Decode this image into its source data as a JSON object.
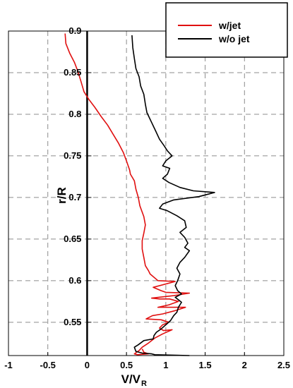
{
  "chart_data": {
    "type": "line",
    "title": "",
    "xlabel": "V/V",
    "xlabel_sub": "R",
    "ylabel": "r/R",
    "xlim": [
      -1,
      2.5
    ],
    "ylim": [
      0.51,
      0.9
    ],
    "xticks": [
      "-1",
      "-0.5",
      "0",
      "0.5",
      "1",
      "1.5",
      "2",
      "2.5"
    ],
    "yticks": [
      "0.55",
      "0.6",
      "0.65",
      "0.7",
      "0.75",
      "0.8",
      "0.85",
      "0.9"
    ],
    "grid": true,
    "legend_position": "top-right",
    "series": [
      {
        "name": "w/jet",
        "color": "#e01010",
        "points": [
          [
            -0.28,
            0.897
          ],
          [
            -0.27,
            0.885
          ],
          [
            -0.22,
            0.873
          ],
          [
            -0.16,
            0.862
          ],
          [
            -0.12,
            0.852
          ],
          [
            -0.08,
            0.84
          ],
          [
            -0.04,
            0.827
          ],
          [
            0.02,
            0.818
          ],
          [
            0.1,
            0.808
          ],
          [
            0.18,
            0.797
          ],
          [
            0.26,
            0.787
          ],
          [
            0.33,
            0.776
          ],
          [
            0.4,
            0.765
          ],
          [
            0.46,
            0.754
          ],
          [
            0.5,
            0.744
          ],
          [
            0.54,
            0.733
          ],
          [
            0.55,
            0.728
          ],
          [
            0.6,
            0.72
          ],
          [
            0.62,
            0.71
          ],
          [
            0.65,
            0.7
          ],
          [
            0.67,
            0.69
          ],
          [
            0.72,
            0.677
          ],
          [
            0.74,
            0.667
          ],
          [
            0.72,
            0.657
          ],
          [
            0.7,
            0.648
          ],
          [
            0.7,
            0.638
          ],
          [
            0.72,
            0.628
          ],
          [
            0.74,
            0.618
          ],
          [
            0.78,
            0.612
          ],
          [
            0.8,
            0.608
          ],
          [
            0.9,
            0.6
          ],
          [
            1.12,
            0.599
          ],
          [
            0.84,
            0.592
          ],
          [
            0.94,
            0.588
          ],
          [
            1.0,
            0.586
          ],
          [
            1.3,
            0.585
          ],
          [
            1.1,
            0.582
          ],
          [
            0.82,
            0.579
          ],
          [
            0.92,
            0.578
          ],
          [
            1.05,
            0.578
          ],
          [
            1.16,
            0.575
          ],
          [
            1.04,
            0.571
          ],
          [
            0.9,
            0.568
          ],
          [
            1.02,
            0.568
          ],
          [
            1.25,
            0.568
          ],
          [
            1.12,
            0.564
          ],
          [
            0.96,
            0.56
          ],
          [
            0.83,
            0.558
          ],
          [
            0.75,
            0.554
          ],
          [
            0.94,
            0.553
          ],
          [
            1.04,
            0.55
          ],
          [
            0.96,
            0.547
          ],
          [
            0.92,
            0.543
          ],
          [
            0.97,
            0.54
          ],
          [
            1.08,
            0.541
          ],
          [
            0.96,
            0.536
          ],
          [
            0.86,
            0.531
          ],
          [
            0.78,
            0.525
          ],
          [
            0.7,
            0.52
          ],
          [
            0.66,
            0.516
          ],
          [
            0.6,
            0.512
          ],
          [
            0.64,
            0.511
          ],
          [
            0.78,
            0.512
          ],
          [
            0.72,
            0.514
          ],
          [
            0.7,
            0.518
          ]
        ]
      },
      {
        "name": "w/o jet",
        "color": "#000000",
        "points": [
          [
            0.57,
            0.895
          ],
          [
            0.58,
            0.88
          ],
          [
            0.6,
            0.867
          ],
          [
            0.62,
            0.855
          ],
          [
            0.66,
            0.845
          ],
          [
            0.68,
            0.834
          ],
          [
            0.72,
            0.824
          ],
          [
            0.74,
            0.812
          ],
          [
            0.76,
            0.802
          ],
          [
            0.82,
            0.79
          ],
          [
            0.87,
            0.78
          ],
          [
            0.92,
            0.77
          ],
          [
            0.98,
            0.762
          ],
          [
            1.02,
            0.756
          ],
          [
            1.06,
            0.752
          ],
          [
            1.08,
            0.75
          ],
          [
            1.0,
            0.744
          ],
          [
            0.96,
            0.738
          ],
          [
            1.05,
            0.735
          ],
          [
            1.02,
            0.728
          ],
          [
            0.96,
            0.723
          ],
          [
            1.04,
            0.718
          ],
          [
            1.18,
            0.712
          ],
          [
            1.35,
            0.708
          ],
          [
            1.62,
            0.706
          ],
          [
            1.42,
            0.701
          ],
          [
            1.1,
            0.697
          ],
          [
            0.96,
            0.692
          ],
          [
            0.92,
            0.687
          ],
          [
            1.02,
            0.684
          ],
          [
            1.14,
            0.678
          ],
          [
            1.24,
            0.672
          ],
          [
            1.26,
            0.664
          ],
          [
            1.18,
            0.658
          ],
          [
            1.24,
            0.652
          ],
          [
            1.28,
            0.645
          ],
          [
            1.24,
            0.64
          ],
          [
            1.3,
            0.636
          ],
          [
            1.24,
            0.628
          ],
          [
            1.18,
            0.622
          ],
          [
            1.14,
            0.615
          ],
          [
            1.18,
            0.608
          ],
          [
            1.15,
            0.6
          ],
          [
            1.12,
            0.594
          ],
          [
            1.15,
            0.588
          ],
          [
            1.2,
            0.584
          ],
          [
            1.12,
            0.58
          ],
          [
            1.2,
            0.574
          ],
          [
            1.16,
            0.568
          ],
          [
            1.14,
            0.562
          ],
          [
            1.1,
            0.558
          ],
          [
            1.06,
            0.552
          ],
          [
            1.0,
            0.547
          ],
          [
            0.94,
            0.542
          ],
          [
            0.88,
            0.538
          ],
          [
            0.85,
            0.534
          ],
          [
            0.84,
            0.53
          ],
          [
            0.72,
            0.528
          ],
          [
            0.65,
            0.523
          ],
          [
            0.6,
            0.52
          ],
          [
            0.62,
            0.515
          ],
          [
            0.7,
            0.513
          ],
          [
            0.82,
            0.512
          ],
          [
            0.86,
            0.511
          ],
          [
            1.3,
            0.51
          ]
        ]
      }
    ]
  }
}
